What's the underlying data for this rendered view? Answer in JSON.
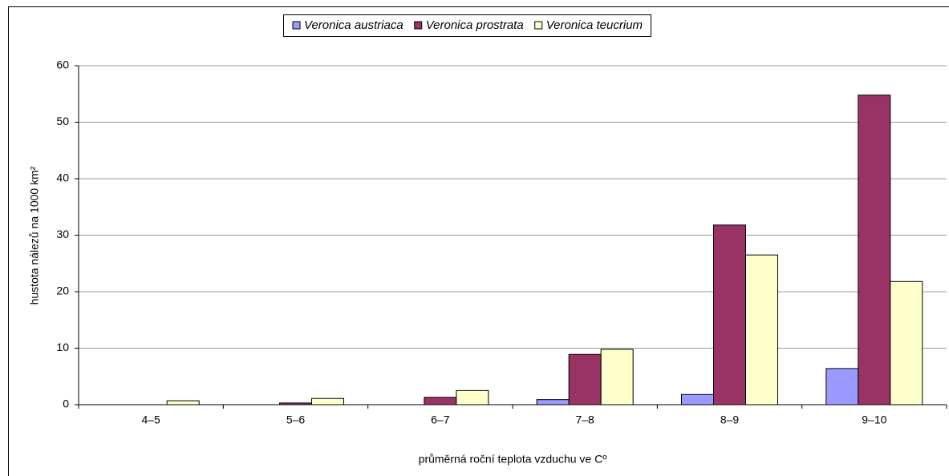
{
  "chart_data": {
    "type": "bar",
    "categories": [
      "4–5",
      "5–6",
      "6–7",
      "7–8",
      "8–9",
      "9–10"
    ],
    "series": [
      {
        "name": "Veronica austriaca",
        "color": "#9999ff",
        "values": [
          0,
          0,
          0,
          0.9,
          1.8,
          6.4
        ]
      },
      {
        "name": "Veronica prostrata",
        "color": "#993366",
        "values": [
          0,
          0.3,
          1.3,
          8.9,
          31.8,
          54.8
        ]
      },
      {
        "name": "Veronica teucrium",
        "color": "#ffffcc",
        "values": [
          0.7,
          1.1,
          2.5,
          9.8,
          26.5,
          21.8
        ]
      }
    ],
    "y_label": "hustota nálezů na 1000 km²",
    "x_label": "průměrná roční teplota vzduchu ve Cº",
    "ylim": [
      0,
      60
    ],
    "yticks": [
      0,
      10,
      20,
      30,
      40,
      50,
      60
    ],
    "grid": true,
    "legend": "top"
  }
}
